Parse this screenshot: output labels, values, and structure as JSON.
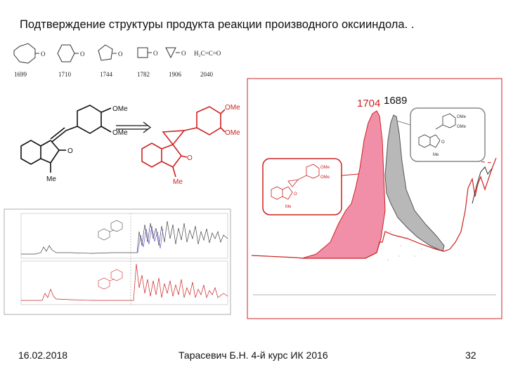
{
  "slide": {
    "title": "Подтверждение структуры продукта реакции производного оксииндола. .",
    "footer": {
      "date": "16.02.2018",
      "author": "Тарасевич Б.Н. 4-й курс ИК 2016",
      "page": "32"
    }
  },
  "ring_frequencies": [
    "1699",
    "1710",
    "1744",
    "1782",
    "1906",
    "2040"
  ],
  "ketene_formula": "H₂C=C=O",
  "substituent_label": "OMe",
  "n_methyl_label": "Me",
  "carbonyl_label": "O",
  "small_n_methyl_label": "Me",
  "peak_labels": {
    "peak_red": "1704",
    "peak_black": "1689"
  },
  "colors": {
    "accent_red": "#cc2222",
    "pink_fill": "#f28fa8",
    "gray_fill": "#b8b8b8",
    "purple_trace": "#6a5acd"
  }
}
